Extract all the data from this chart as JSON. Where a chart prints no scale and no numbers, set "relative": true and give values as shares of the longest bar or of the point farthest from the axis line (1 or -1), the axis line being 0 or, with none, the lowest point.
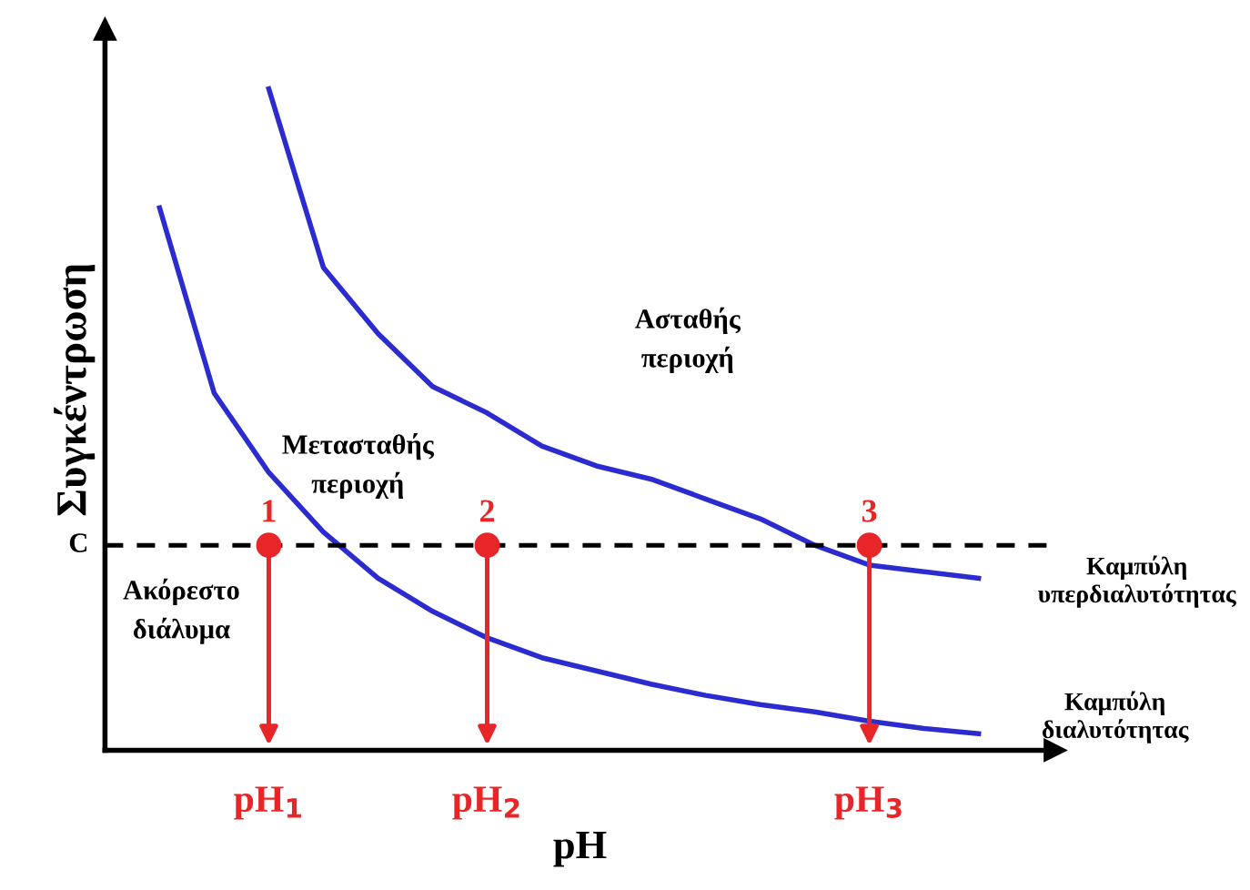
{
  "chart_data": {
    "type": "line",
    "relative": true,
    "xlabel": "pH",
    "ylabel": "Συγκέντρωση",
    "categories": [
      null,
      null,
      "pH$_{1}$",
      null,
      null,
      null,
      "pH$_{2}$",
      null,
      null,
      null,
      null,
      null,
      null,
      "pH$_{3}$",
      null,
      null
    ],
    "series": [
      {
        "name": "Καμπύλη υπερδιαλυτότητας",
        "color": "#2b2bd0",
        "values": [
          null,
          null,
          1.0,
          0.73,
          0.63,
          0.55,
          0.51,
          0.46,
          0.43,
          0.41,
          0.38,
          0.35,
          0.31,
          0.28,
          0.27,
          0.26
        ]
      },
      {
        "name": "Καμπύλη διαλυτότητας",
        "color": "#2b2bd0",
        "values": [
          0.82,
          0.54,
          0.42,
          0.33,
          0.26,
          0.21,
          0.17,
          0.14,
          0.12,
          0.1,
          0.083,
          0.069,
          0.058,
          0.044,
          0.033,
          0.025
        ]
      },
      {
        "type": "scatter",
        "color": "#e8262a",
        "marker": "circle",
        "values": [
          null,
          null,
          0.31,
          null,
          null,
          null,
          0.31,
          null,
          null,
          null,
          null,
          null,
          null,
          0.31,
          null,
          null
        ]
      }
    ],
    "ref_lines": [
      {
        "axis": "y",
        "value": 0.31,
        "label": "C",
        "color": "#000000",
        "line_style": "dashed"
      }
    ],
    "annotations": [
      "Ασταθής\nπεριοχή",
      "Μετασταθής\nπεριοχή",
      "Ακόρεστο\nδιάλυμα",
      {
        "text": "1",
        "x": "pH$_{1}$",
        "y": 0.31
      },
      {
        "text": "2",
        "x": "pH$_{2}$",
        "y": 0.31
      },
      {
        "text": "3",
        "x": "pH$_{3}$",
        "y": 0.31
      }
    ],
    "grid": false,
    "legend": false
  }
}
